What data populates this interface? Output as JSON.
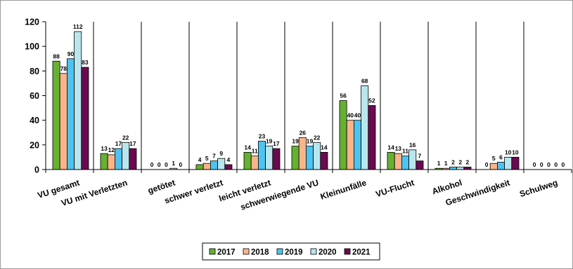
{
  "chart_data": {
    "type": "bar",
    "title": "",
    "xlabel": "",
    "ylabel": "",
    "ylim": [
      0,
      120
    ],
    "yticks": [
      0,
      20,
      40,
      60,
      80,
      100,
      120
    ],
    "grid": false,
    "legend_position": "bottom",
    "categories": [
      "VU gesamt",
      "VU mit Verletzten",
      "getötet",
      "schwer verletzt",
      "leicht verletzt",
      "schwerwiegende VU",
      "Kleinunfälle",
      "VU-Flucht",
      "Alkohol",
      "Geschwindigkeit",
      "Schulweg"
    ],
    "series": [
      {
        "name": "2017",
        "color": "#66b032",
        "values": [
          88,
          13,
          0,
          4,
          14,
          19,
          56,
          14,
          1,
          0,
          0
        ]
      },
      {
        "name": "2018",
        "color": "#fbb48a",
        "values": [
          78,
          12,
          0,
          5,
          11,
          26,
          40,
          13,
          1,
          5,
          0
        ]
      },
      {
        "name": "2019",
        "color": "#4fc3f0",
        "values": [
          90,
          17,
          0,
          7,
          23,
          19,
          40,
          11,
          2,
          6,
          0
        ]
      },
      {
        "name": "2020",
        "color": "#b9e6ee",
        "values": [
          112,
          22,
          1,
          9,
          19,
          22,
          68,
          16,
          2,
          10,
          0
        ]
      },
      {
        "name": "2021",
        "color": "#6b0a4f",
        "values": [
          83,
          17,
          0,
          4,
          17,
          14,
          52,
          7,
          2,
          10,
          0
        ]
      }
    ]
  }
}
